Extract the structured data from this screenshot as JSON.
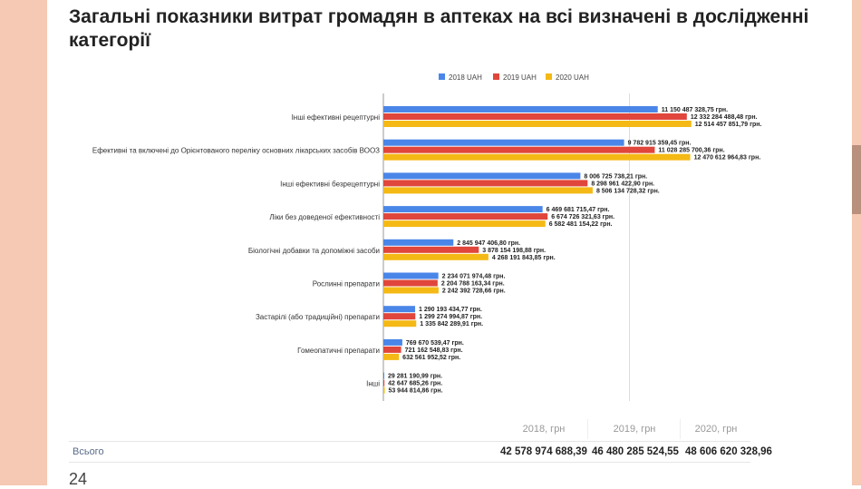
{
  "title": "Загальні показники витрат громадян в аптеках на всі визначені в дослідженні категорії",
  "chart_data": {
    "type": "bar",
    "orientation": "horizontal",
    "grid": true,
    "legend_position": "top",
    "xlim": [
      0,
      13000000000
    ],
    "categories": [
      "Інші ефективні рецептурні",
      "Ефективні та включені до Орієнтованого переліку основних лікарських засобів ВООЗ",
      "Інші ефективні безрецептурні",
      "Ліки без доведеної ефективності",
      "Біологічні добавки та допоміжні засоби",
      "Рослинні препарати",
      "Застарілі (або традиційні) препарати",
      "Гомеопатичні препарати",
      "Інші"
    ],
    "series": [
      {
        "name": "2018 UAH",
        "color": "#4a86e8",
        "values": [
          11150487328.75,
          9782915359.45,
          8006725738.21,
          6469681715.47,
          2845947406.8,
          2234071974.48,
          1290193434.77,
          769670539.47,
          29281190.99
        ],
        "labels": [
          "11 150 487 328,75 грн.",
          "9 782 915 359,45 грн.",
          "8 006 725 738,21 грн.",
          "6 469 681 715,47 грн.",
          "2 845 947 406,80 грн.",
          "2 234 071 974,48 грн.",
          "1 290 193 434,77 грн.",
          "769 670 539,47 грн.",
          "29 281 190,99 грн."
        ]
      },
      {
        "name": "2019 UAH",
        "color": "#e0463b",
        "values": [
          12332284488.48,
          11028285700.36,
          8298961422.9,
          6674726321.63,
          3878154198.88,
          2204788163.34,
          1299274994.87,
          721162548.83,
          42647685.26
        ],
        "labels": [
          "12 332 284 488,48 грн.",
          "11 028 285 700,36 грн.",
          "8 298 961 422,90 грн.",
          "6 674 726 321,63 грн.",
          "3 878 154 198,88 грн.",
          "2 204 788 163,34 грн.",
          "1 299 274 994,87 грн.",
          "721 162 548,83 грн.",
          "42 647 685,26 грн."
        ]
      },
      {
        "name": "2020 UAH",
        "color": "#f4b915",
        "values": [
          12514457851.79,
          12470612964.83,
          8506134728.32,
          6582481154.22,
          4268191843.85,
          2242392728.66,
          1335842289.91,
          632561952.52,
          53944814.86
        ],
        "labels": [
          "12 514 457 851,79 грн.",
          "12 470 612 964,83 грн.",
          "8 506 134 728,32 грн.",
          "6 582 481 154,22 грн.",
          "4 268 191 843,85 грн.",
          "2 242 392 728,66 грн.",
          "1 335 842 289,91 грн.",
          "632 561 952,52 грн.",
          "53 944 814,86 грн."
        ]
      }
    ]
  },
  "table": {
    "headers": [
      "2018, грн",
      "2019, грн",
      "2020, грн"
    ],
    "row_label": "Всього",
    "values": [
      "42 578 974 688,39",
      "46 480 285 524,55",
      "48 606 620 328,96"
    ]
  },
  "page_number": "24"
}
